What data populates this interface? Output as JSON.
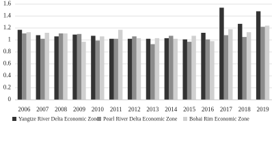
{
  "chart_data": {
    "type": "bar",
    "categories": [
      "2006",
      "2007",
      "2008",
      "2009",
      "2010",
      "2011",
      "2012",
      "2013",
      "2014",
      "2015",
      "2016",
      "2017",
      "2018",
      "2019"
    ],
    "series": [
      {
        "name": "Yangtze River Delta Economic Zone",
        "color": "#333333",
        "values": [
          1.17,
          1.08,
          1.06,
          1.09,
          1.07,
          1.02,
          1.02,
          1.02,
          1.03,
          1.01,
          1.12,
          1.54,
          1.27,
          1.48
        ]
      },
      {
        "name": "Pearl River Delta Economic Zone",
        "color": "#8c8c8c",
        "values": [
          1.11,
          1.02,
          1.11,
          1.1,
          0.99,
          1.02,
          1.06,
          0.93,
          1.07,
          0.97,
          1.01,
          1.08,
          1.05,
          1.22
        ]
      },
      {
        "name": "Bohai Rim Economic Zone",
        "color": "#d0d0d0",
        "values": [
          1.13,
          1.12,
          1.11,
          0.97,
          1.06,
          1.17,
          1.03,
          1.03,
          1.02,
          1.07,
          0.98,
          1.18,
          1.13,
          1.24
        ]
      }
    ],
    "ylim": [
      0,
      1.6
    ],
    "yticks": [
      0,
      0.2,
      0.4,
      0.6,
      0.8,
      1,
      1.2,
      1.4,
      1.6
    ],
    "grid": true,
    "legend": "bottom"
  }
}
